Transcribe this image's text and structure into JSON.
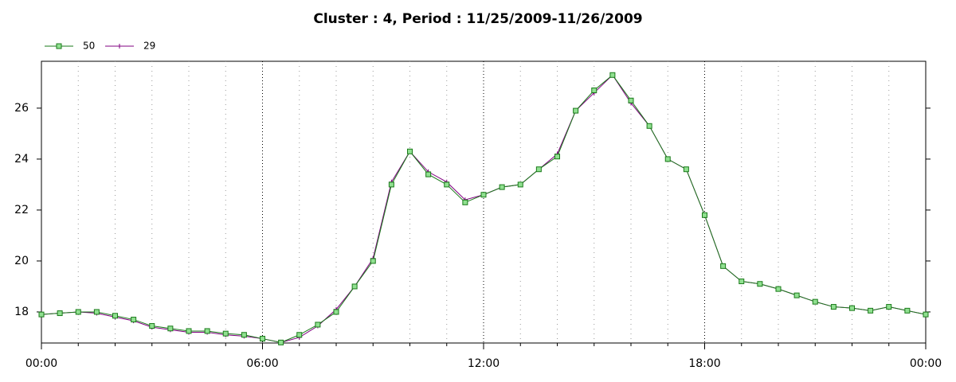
{
  "chart_data": {
    "type": "line",
    "title": "Cluster : 4, Period : 11/25/2009-11/26/2009",
    "x": [
      0,
      0.5,
      1,
      1.5,
      2,
      2.5,
      3,
      3.5,
      4,
      4.5,
      5,
      5.5,
      6,
      6.5,
      7,
      7.5,
      8,
      8.5,
      9,
      9.5,
      10,
      10.5,
      11,
      11.5,
      12,
      12.5,
      13,
      13.5,
      14,
      14.5,
      15,
      15.5,
      16,
      16.5,
      17,
      17.5,
      18,
      18.5,
      19,
      19.5,
      20,
      20.5,
      21,
      21.5,
      22,
      22.5,
      23,
      23.5,
      24
    ],
    "series": [
      {
        "name": "29",
        "color": "#800080",
        "marker": "plus",
        "values": [
          17.9,
          17.95,
          18.0,
          17.95,
          17.8,
          17.65,
          17.4,
          17.3,
          17.2,
          17.2,
          17.1,
          17.05,
          16.95,
          16.8,
          17.0,
          17.45,
          18.1,
          19.0,
          20.1,
          23.1,
          24.3,
          23.5,
          23.1,
          22.4,
          22.6,
          22.9,
          23.0,
          23.6,
          24.2,
          25.9,
          26.6,
          27.3,
          26.2,
          25.3,
          24.0,
          23.6,
          21.8,
          19.8,
          19.2,
          19.1,
          18.9,
          18.65,
          18.4,
          18.2,
          18.15,
          18.05,
          18.2,
          18.05,
          17.9
        ]
      },
      {
        "name": "50",
        "color": "#1a7a1a",
        "marker": "square",
        "values": [
          17.9,
          17.95,
          18.0,
          18.0,
          17.85,
          17.7,
          17.45,
          17.35,
          17.25,
          17.25,
          17.15,
          17.1,
          16.95,
          16.8,
          17.1,
          17.5,
          18.0,
          19.0,
          20.0,
          23.0,
          24.3,
          23.4,
          23.0,
          22.3,
          22.6,
          22.9,
          23.0,
          23.6,
          24.1,
          25.9,
          26.7,
          27.3,
          26.3,
          25.3,
          24.0,
          23.6,
          21.8,
          19.8,
          19.2,
          19.1,
          18.9,
          18.65,
          18.4,
          18.2,
          18.15,
          18.05,
          18.2,
          18.05,
          17.9
        ]
      }
    ],
    "xlim": [
      0,
      24
    ],
    "xticks": [
      {
        "value": 0,
        "label": "00:00"
      },
      {
        "value": 6,
        "label": "06:00"
      },
      {
        "value": 12,
        "label": "12:00"
      },
      {
        "value": 18,
        "label": "18:00"
      },
      {
        "value": 24,
        "label": "00:00"
      }
    ],
    "xminorticks": [
      1,
      2,
      3,
      4,
      5,
      7,
      8,
      9,
      10,
      11,
      13,
      14,
      15,
      16,
      17,
      19,
      20,
      21,
      22,
      23
    ],
    "ylim": [
      16.78,
      27.84
    ],
    "yticks": [
      18,
      20,
      22,
      24,
      26
    ],
    "grid": true,
    "legend": "top-left"
  }
}
